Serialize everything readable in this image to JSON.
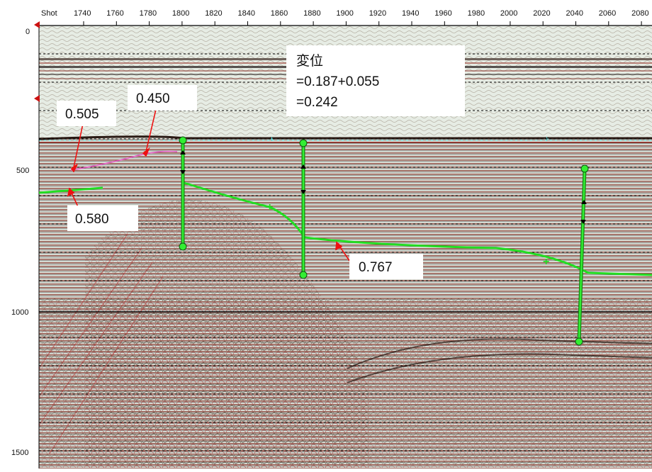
{
  "section": {
    "shot_label": "Shot",
    "shot_ticks": [
      "1740",
      "1760",
      "1780",
      "1800",
      "1820",
      "1840",
      "1860",
      "1880",
      "1900",
      "1920",
      "1940",
      "1960",
      "1980",
      "2000",
      "2020",
      "2040",
      "2060",
      "2080"
    ],
    "time_ticks": [
      "0",
      "500",
      "1000",
      "1500"
    ]
  },
  "annotations": {
    "displacement_lines": [
      "変位",
      "=0.187+0.055",
      "=0.242"
    ],
    "label_0505": "0.505",
    "label_0450": "0.450",
    "label_0580": "0.580",
    "label_0767": "0.767"
  },
  "colors": {
    "horizon_green": "#22dd22",
    "arrow_red": "#ee1111",
    "horizon_pink": "#e060c0",
    "seafloor_cyan": "#44dddd"
  }
}
